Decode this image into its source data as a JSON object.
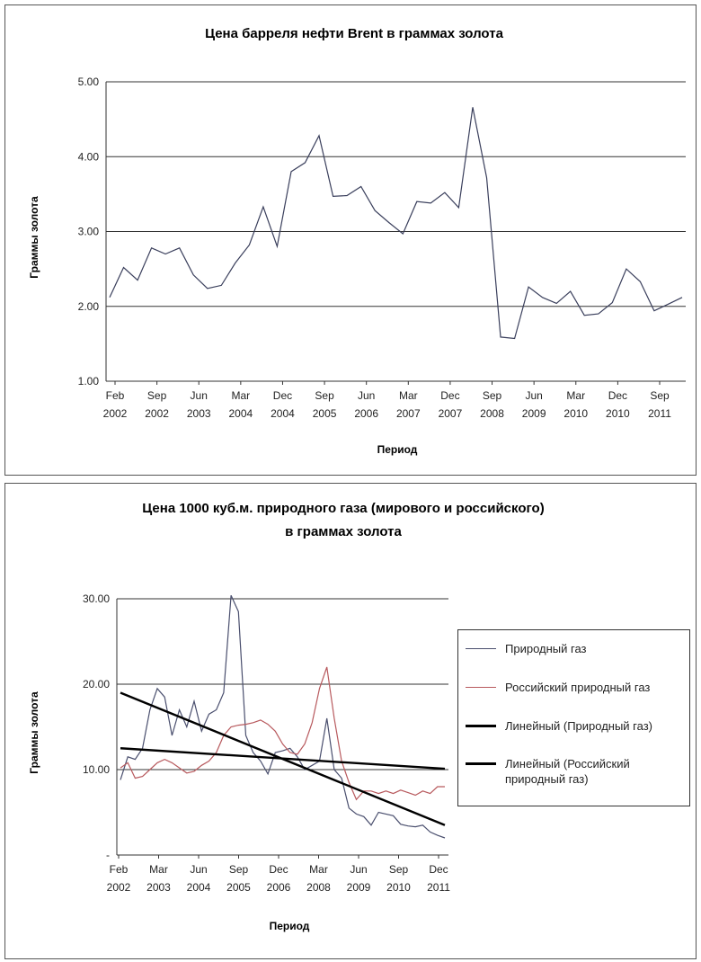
{
  "chart_data": [
    {
      "type": "line",
      "title": "Цена барреля нефти Brent в граммах золота",
      "xlabel": "Период",
      "ylabel": "Граммы золота",
      "ylim": [
        1.0,
        5.0
      ],
      "y_ticks": [
        "1.00",
        "2.00",
        "3.00",
        "4.00",
        "5.00"
      ],
      "x_ticks": [
        [
          "Feb",
          "2002"
        ],
        [
          "Sep",
          "2002"
        ],
        [
          "Jun",
          "2003"
        ],
        [
          "Mar",
          "2004"
        ],
        [
          "Dec",
          "2004"
        ],
        [
          "Sep",
          "2005"
        ],
        [
          "Jun",
          "2006"
        ],
        [
          "Mar",
          "2007"
        ],
        [
          "Dec",
          "2007"
        ],
        [
          "Sep",
          "2008"
        ],
        [
          "Jun",
          "2009"
        ],
        [
          "Mar",
          "2010"
        ],
        [
          "Dec",
          "2010"
        ],
        [
          "Sep",
          "2011"
        ]
      ],
      "grid": true,
      "series": [
        {
          "color": "#3a3f5c",
          "values": [
            2.12,
            2.52,
            2.35,
            2.78,
            2.7,
            2.78,
            2.42,
            2.24,
            2.28,
            2.58,
            2.82,
            3.33,
            2.8,
            3.8,
            3.92,
            4.28,
            3.47,
            3.48,
            3.6,
            3.28,
            3.12,
            2.97,
            3.4,
            3.38,
            3.52,
            3.32,
            4.66,
            3.72,
            1.59,
            1.57,
            2.26,
            2.12,
            2.04,
            2.2,
            1.88,
            1.9,
            2.05,
            2.5,
            2.33,
            1.94,
            2.03,
            2.12
          ]
        }
      ]
    },
    {
      "type": "line",
      "title": "Цена 1000 куб.м. природного газа (мирового и российского) в граммах золота",
      "title_lines": [
        "Цена 1000 куб.м. природного газа (мирового и российского)",
        "в граммах золота"
      ],
      "xlabel": "Период",
      "ylabel": "Граммы золота",
      "ylim": [
        0,
        30
      ],
      "y_ticks": [
        "-",
        "10.00",
        "20.00",
        "30.00"
      ],
      "x_ticks": [
        [
          "Feb",
          "2002"
        ],
        [
          "Mar",
          "2003"
        ],
        [
          "Jun",
          "2004"
        ],
        [
          "Sep",
          "2005"
        ],
        [
          "Dec",
          "2006"
        ],
        [
          "Mar",
          "2008"
        ],
        [
          "Jun",
          "2009"
        ],
        [
          "Sep",
          "2010"
        ],
        [
          "Dec",
          "2011"
        ]
      ],
      "grid": true,
      "legend_position": "right",
      "series": [
        {
          "name": "Природный газ",
          "color": "#4a4f6e",
          "values": [
            8.8,
            11.5,
            11.2,
            12.5,
            17.0,
            19.5,
            18.5,
            14.0,
            17.0,
            15.0,
            18.0,
            14.5,
            16.5,
            17.0,
            19.0,
            30.4,
            28.5,
            14.0,
            12.0,
            11.0,
            9.5,
            12.0,
            12.2,
            12.5,
            11.5,
            10.0,
            10.5,
            11.0,
            16.0,
            10.0,
            9.0,
            5.5,
            4.8,
            4.5,
            3.5,
            5.0,
            4.8,
            4.6,
            3.6,
            3.4,
            3.3,
            3.5,
            2.7,
            2.3,
            2.0
          ]
        },
        {
          "name": "Российский природный газ",
          "color": "#b85a5e",
          "values": [
            10.2,
            10.8,
            9.0,
            9.2,
            10.0,
            10.8,
            11.2,
            10.8,
            10.2,
            9.6,
            9.8,
            10.5,
            11.0,
            12.0,
            14.0,
            15.0,
            15.2,
            15.3,
            15.5,
            15.8,
            15.3,
            14.5,
            13.0,
            12.0,
            11.8,
            13.0,
            15.5,
            19.5,
            22.0,
            16.0,
            11.0,
            8.5,
            6.5,
            7.5,
            7.5,
            7.2,
            7.5,
            7.2,
            7.6,
            7.3,
            7.0,
            7.5,
            7.2,
            8.0,
            8.0
          ]
        },
        {
          "name": "Линейный (Природный газ)",
          "color": "#000000",
          "trend": [
            19.0,
            3.5
          ]
        },
        {
          "name": "Линейный (Российский природный газ)",
          "color": "#000000",
          "trend": [
            12.5,
            10.1
          ]
        }
      ]
    }
  ]
}
